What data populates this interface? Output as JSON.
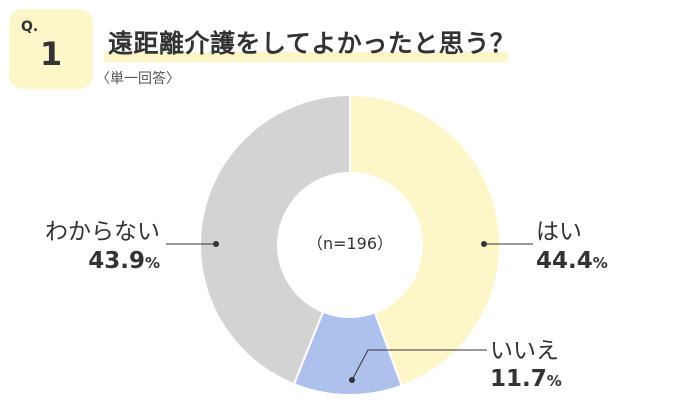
{
  "question": {
    "prefix": "Q.",
    "number": "1",
    "title": "遠距離介護をしてよかったと思う？",
    "subtitle": "〈単一回答〉"
  },
  "colors": {
    "badge": "#fdf6c8",
    "hai": "#fdf6c8",
    "iie": "#aec0ec",
    "wakaranai": "#d3d3d3",
    "leader": "#333333"
  },
  "chart_data": {
    "type": "pie",
    "donut": true,
    "center_label": "（n=196）",
    "slices": [
      {
        "label": "はい",
        "value": 44.4,
        "value_text": "44.4",
        "unit": "%",
        "color": "#fdf6c8"
      },
      {
        "label": "いいえ",
        "value": 11.7,
        "value_text": "11.7",
        "unit": "%",
        "color": "#aec0ec"
      },
      {
        "label": "わからない",
        "value": 43.9,
        "value_text": "43.9",
        "unit": "%",
        "color": "#d3d3d3"
      }
    ]
  }
}
